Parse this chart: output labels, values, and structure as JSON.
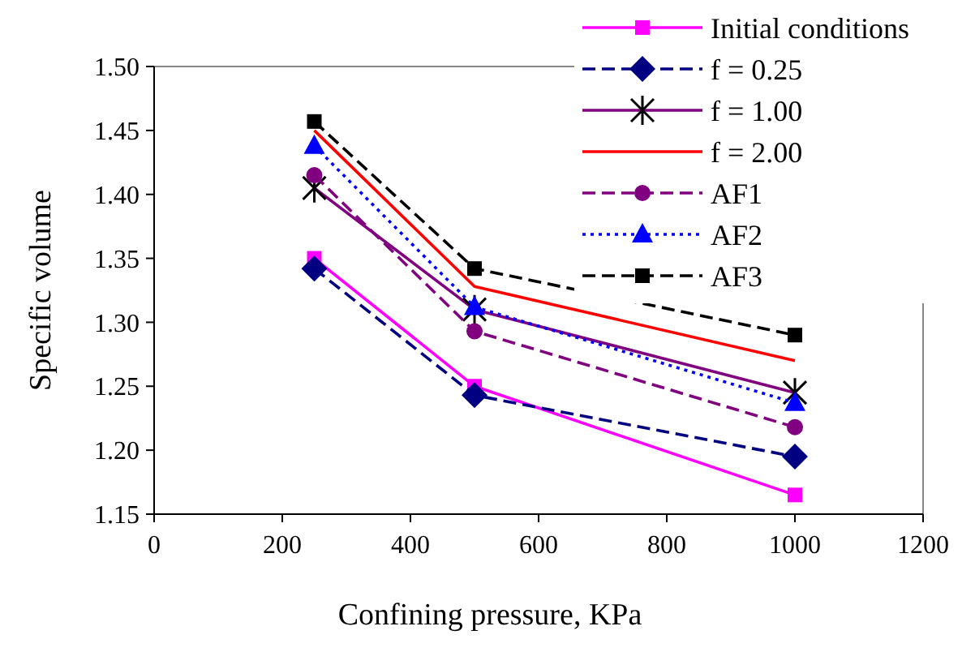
{
  "chart_data": {
    "type": "line",
    "xlabel": "Confining pressure, KPa",
    "ylabel": "Specific volume",
    "x": [
      250,
      500,
      1000
    ],
    "xlim": [
      0,
      1200
    ],
    "xticks": [
      0,
      200,
      400,
      600,
      800,
      1000,
      1200
    ],
    "ylim": [
      1.15,
      1.5
    ],
    "yticks": [
      {
        "value": 1.15,
        "label": "1.15"
      },
      {
        "value": 1.2,
        "label": "1.20"
      },
      {
        "value": 1.25,
        "label": "1.25"
      },
      {
        "value": 1.3,
        "label": "1.30"
      },
      {
        "value": 1.35,
        "label": "1.35"
      },
      {
        "value": 1.4,
        "label": "1.40"
      },
      {
        "value": 1.45,
        "label": "1.45"
      },
      {
        "value": 1.5,
        "label": "1.50"
      }
    ],
    "grid": false,
    "legend": "top right",
    "series": [
      {
        "name": "Initial conditions",
        "color": "#ff00ff",
        "marker": "square",
        "line_style": "solid",
        "values": [
          1.35,
          1.25,
          1.165
        ]
      },
      {
        "name": "f = 0.25",
        "color": "#000080",
        "marker": "diamond",
        "line_style": "dashed",
        "values": [
          1.342,
          1.243,
          1.195
        ]
      },
      {
        "name": "f = 1.00",
        "color": "#800080",
        "marker": "cross",
        "line_style": "solid",
        "values": [
          1.405,
          1.31,
          1.245
        ]
      },
      {
        "name": "f = 2.00",
        "color": "#ff0000",
        "marker": "none",
        "line_style": "solid",
        "values": [
          1.45,
          1.328,
          1.27
        ]
      },
      {
        "name": "AF1",
        "color": "#800080",
        "marker": "circle",
        "line_style": "dashed",
        "values": [
          1.415,
          1.293,
          1.218
        ]
      },
      {
        "name": "AF2",
        "color": "#0000ff",
        "marker": "triangle",
        "line_style": "dotted",
        "values": [
          1.438,
          1.312,
          1.237
        ]
      },
      {
        "name": "AF3",
        "color": "#000000",
        "marker": "square",
        "line_style": "dashed",
        "values": [
          1.457,
          1.342,
          1.29
        ]
      }
    ]
  }
}
